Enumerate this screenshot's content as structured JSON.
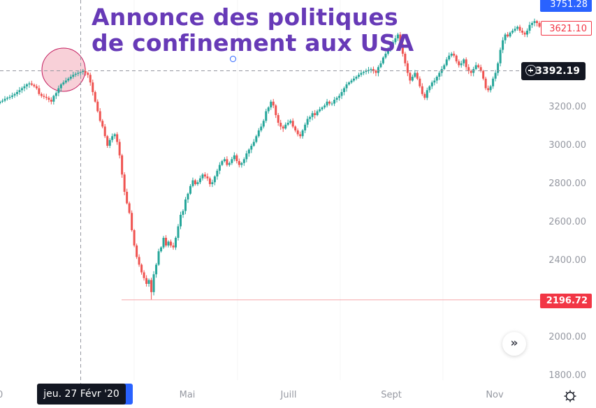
{
  "annotation": {
    "line1": "Annonce des politiques",
    "line2": "de confinement aux USA",
    "color": "#673ab7"
  },
  "price_axis": {
    "labels": [
      "3200.00",
      "3000.00",
      "2800.00",
      "2600.00",
      "2400.00",
      "2000.00",
      "1800.00"
    ],
    "top_tag": "3751.28",
    "last_price_tag": "3621.10",
    "crosshair_price": "3392.19",
    "low_tag": "2196.72"
  },
  "time_axis": {
    "left_clipped": "0",
    "labels": [
      "Mai",
      "Juill",
      "Sept",
      "Nov"
    ],
    "crosshair_date": "jeu. 27 Févr '20"
  },
  "controls": {
    "scroll_to_realtime": "»",
    "settings_icon": "gear-icon"
  },
  "colors": {
    "up": "#26a69a",
    "down": "#ef5350",
    "crosshair": "#9598a1",
    "highlight_circle_fill": "#f8d0d8",
    "highlight_circle_stroke": "#c2185b",
    "low_line": "#f7a5a8"
  },
  "chart_data": {
    "type": "candlestick",
    "title": "Annonce des politiques de confinement aux USA",
    "xlabel": "",
    "ylabel": "",
    "x_tick_labels": [
      "Mai",
      "Juill",
      "Sept",
      "Nov"
    ],
    "y_tick_labels": [
      1800,
      2000,
      2400,
      2600,
      2800,
      3000,
      3200
    ],
    "ylim": [
      1780,
      3760
    ],
    "grid": false,
    "annotations": [
      {
        "type": "text",
        "text": "Annonce des politiques de confinement aux USA"
      },
      {
        "type": "circle",
        "at": "Feb 2020 peak",
        "price": 3393
      },
      {
        "type": "horizontal_line",
        "price": 2196.72,
        "label": "2196.72"
      },
      {
        "type": "crosshair",
        "price": 3392.19,
        "date": "jeu. 27 Févr '20"
      }
    ],
    "last_price": 3621.1,
    "highest_visible": 3751.28,
    "lowest_low": 2196.72,
    "close_path": [
      3230,
      3235,
      3245,
      3250,
      3255,
      3262,
      3270,
      3280,
      3290,
      3300,
      3310,
      3320,
      3325,
      3318,
      3310,
      3300,
      3270,
      3260,
      3255,
      3250,
      3240,
      3230,
      3260,
      3275,
      3300,
      3320,
      3330,
      3340,
      3350,
      3360,
      3370,
      3375,
      3380,
      3385,
      3390,
      3380,
      3370,
      3330,
      3280,
      3230,
      3180,
      3130,
      3100,
      3050,
      3000,
      3030,
      3050,
      3060,
      3020,
      2950,
      2850,
      2760,
      2700,
      2650,
      2560,
      2480,
      2420,
      2380,
      2340,
      2310,
      2280,
      2300,
      2237,
      2330,
      2380,
      2450,
      2470,
      2520,
      2480,
      2500,
      2480,
      2470,
      2520,
      2580,
      2640,
      2660,
      2720,
      2750,
      2790,
      2820,
      2800,
      2810,
      2830,
      2850,
      2840,
      2830,
      2800,
      2810,
      2840,
      2870,
      2900,
      2920,
      2930,
      2900,
      2910,
      2930,
      2950,
      2920,
      2900,
      2910,
      2930,
      2960,
      2980,
      3000,
      3020,
      3050,
      3080,
      3100,
      3130,
      3180,
      3200,
      3230,
      3210,
      3160,
      3120,
      3100,
      3090,
      3110,
      3120,
      3130,
      3100,
      3080,
      3060,
      3050,
      3080,
      3110,
      3140,
      3150,
      3170,
      3160,
      3180,
      3190,
      3200,
      3210,
      3230,
      3220,
      3220,
      3240,
      3250,
      3260,
      3280,
      3300,
      3320,
      3330,
      3340,
      3350,
      3360,
      3370,
      3380,
      3385,
      3390,
      3395,
      3400,
      3392,
      3380,
      3410,
      3430,
      3460,
      3480,
      3500,
      3520,
      3540,
      3560,
      3580,
      3530,
      3480,
      3430,
      3380,
      3340,
      3360,
      3380,
      3350,
      3310,
      3270,
      3250,
      3290,
      3310,
      3330,
      3340,
      3360,
      3380,
      3400,
      3420,
      3450,
      3470,
      3480,
      3470,
      3440,
      3420,
      3430,
      3450,
      3410,
      3390,
      3380,
      3400,
      3420,
      3410,
      3390,
      3350,
      3300,
      3290,
      3310,
      3350,
      3380,
      3430,
      3500,
      3550,
      3580,
      3570,
      3590,
      3600,
      3610,
      3620,
      3600,
      3590,
      3580,
      3600,
      3630,
      3640,
      3650,
      3640,
      3621
    ]
  }
}
